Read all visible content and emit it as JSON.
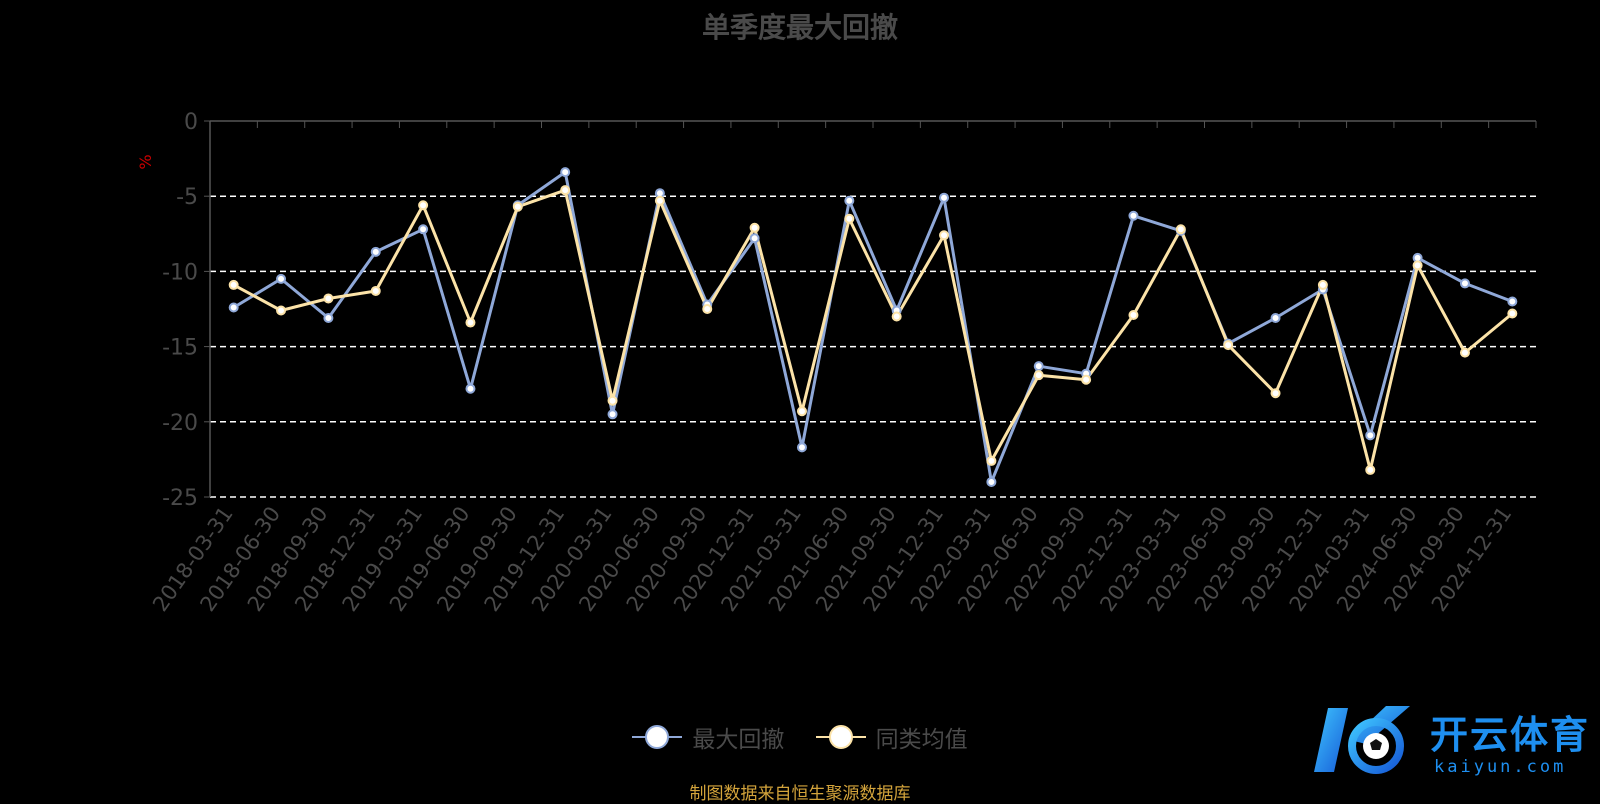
{
  "chart_data": {
    "type": "line",
    "title": "单季度最大回撤",
    "ylabel": "%",
    "ylim": [
      -25,
      0
    ],
    "yticks": [
      0,
      -5,
      -10,
      -15,
      -20,
      -25
    ],
    "grid": true,
    "legend_position": "bottom",
    "categories": [
      "2018-03-31",
      "2018-06-30",
      "2018-09-30",
      "2018-12-31",
      "2019-03-31",
      "2019-06-30",
      "2019-09-30",
      "2019-12-31",
      "2020-03-31",
      "2020-06-30",
      "2020-09-30",
      "2020-12-31",
      "2021-03-31",
      "2021-06-30",
      "2021-09-30",
      "2021-12-31",
      "2022-03-31",
      "2022-06-30",
      "2022-09-30",
      "2022-12-31",
      "2023-03-31",
      "2023-06-30",
      "2023-09-30",
      "2023-12-31",
      "2024-03-31",
      "2024-06-30",
      "2024-09-30",
      "2024-12-31"
    ],
    "series": [
      {
        "name": "最大回撤",
        "color": "#8fa8d8",
        "values": [
          -12.4,
          -10.5,
          -13.1,
          -8.7,
          -7.2,
          -17.8,
          -5.6,
          -3.4,
          -19.5,
          -4.8,
          -12.2,
          -7.8,
          -21.7,
          -5.3,
          -12.6,
          -5.1,
          -24.0,
          -16.3,
          -16.8,
          -6.3,
          -7.3,
          -14.8,
          -13.1,
          -11.2,
          -20.9,
          -9.1,
          -10.8,
          -12.0
        ]
      },
      {
        "name": "同类均值",
        "color": "#fce3a8",
        "values": [
          -10.9,
          -12.6,
          -11.8,
          -11.3,
          -5.6,
          -13.4,
          -5.7,
          -4.6,
          -18.6,
          -5.3,
          -12.5,
          -7.1,
          -19.3,
          -6.5,
          -13.0,
          -7.6,
          -22.6,
          -16.9,
          -17.2,
          -12.9,
          -7.2,
          -14.9,
          -18.1,
          -10.9,
          -23.2,
          -9.6,
          -15.4,
          -12.8
        ]
      }
    ]
  },
  "footer": {
    "source": "制图数据来自恒生聚源数据库"
  },
  "watermark": {
    "brand": "开云体育",
    "url": "kaiyun.com"
  }
}
